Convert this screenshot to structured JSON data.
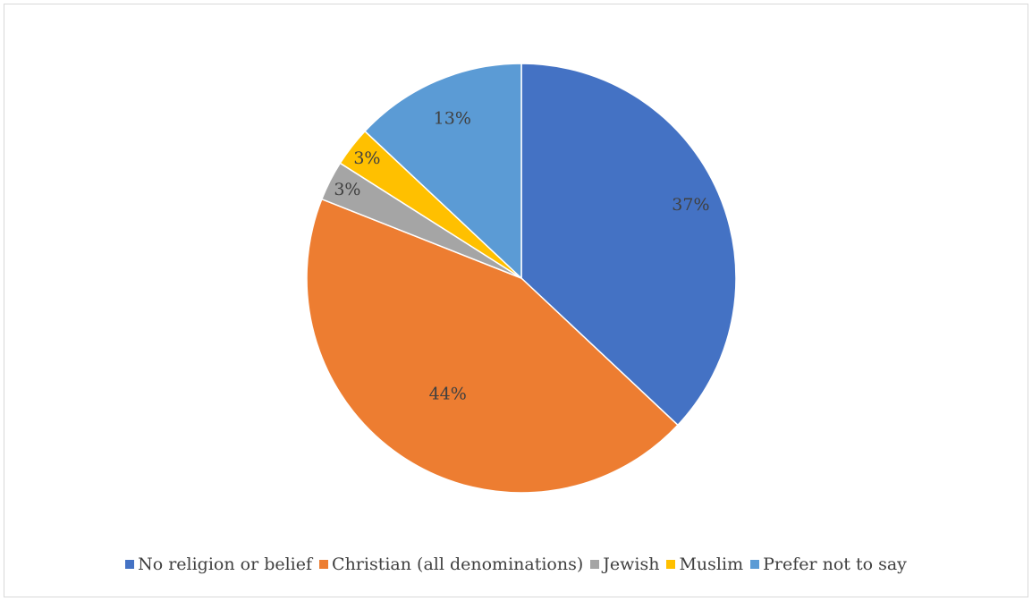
{
  "chart_data": {
    "type": "pie",
    "title": "",
    "legend_position": "bottom",
    "start_angle_deg": 0,
    "direction": "clockwise",
    "slices": [
      {
        "name": "No religion or belief",
        "value": 37,
        "label": "37%",
        "color": "#4472C4"
      },
      {
        "name": "Christian (all denominations)",
        "value": 44,
        "label": "44%",
        "color": "#ED7D31"
      },
      {
        "name": "Jewish",
        "value": 3,
        "label": "3%",
        "color": "#A5A5A5"
      },
      {
        "name": "Muslim",
        "value": 3,
        "label": "3%",
        "color": "#FFC000"
      },
      {
        "name": "Prefer not to say",
        "value": 13,
        "label": "13%",
        "color": "#5B9BD5"
      }
    ]
  }
}
